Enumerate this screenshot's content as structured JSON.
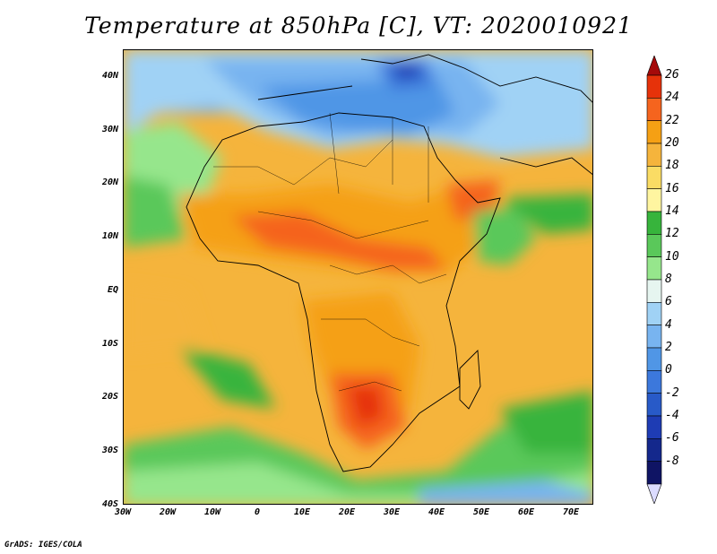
{
  "title": "Temperature at 850hPa [C], VT: 2020010921",
  "credit": "GrADS: IGES/COLA",
  "map": {
    "projection": "lat-lon",
    "lon_range": [
      -30,
      75
    ],
    "lat_range": [
      -40,
      45
    ],
    "lat_labels": [
      "40N",
      "30N",
      "20N",
      "10N",
      "EQ",
      "10S",
      "20S",
      "30S",
      "40S"
    ],
    "lon_labels": [
      "30W",
      "20W",
      "10W",
      "0",
      "10E",
      "20E",
      "30E",
      "40E",
      "50E",
      "60E",
      "70E"
    ]
  },
  "colorbar": {
    "labels": [
      "26",
      "24",
      "22",
      "20",
      "18",
      "16",
      "14",
      "12",
      "10",
      "8",
      "6",
      "4",
      "2",
      "0",
      "-2",
      "-4",
      "-6",
      "-8"
    ],
    "colors": [
      "#a50a0a",
      "#e6320a",
      "#f5641e",
      "#f5a014",
      "#f5b43c",
      "#fadc64",
      "#fff5a0",
      "#37b43c",
      "#5ac85a",
      "#96e68c",
      "#e6f5f0",
      "#a0d2f5",
      "#78b4f0",
      "#5096e6",
      "#3c78dc",
      "#285ac8",
      "#1e3cb4",
      "#14288c",
      "#0f1464",
      "#dcdcff"
    ]
  }
}
